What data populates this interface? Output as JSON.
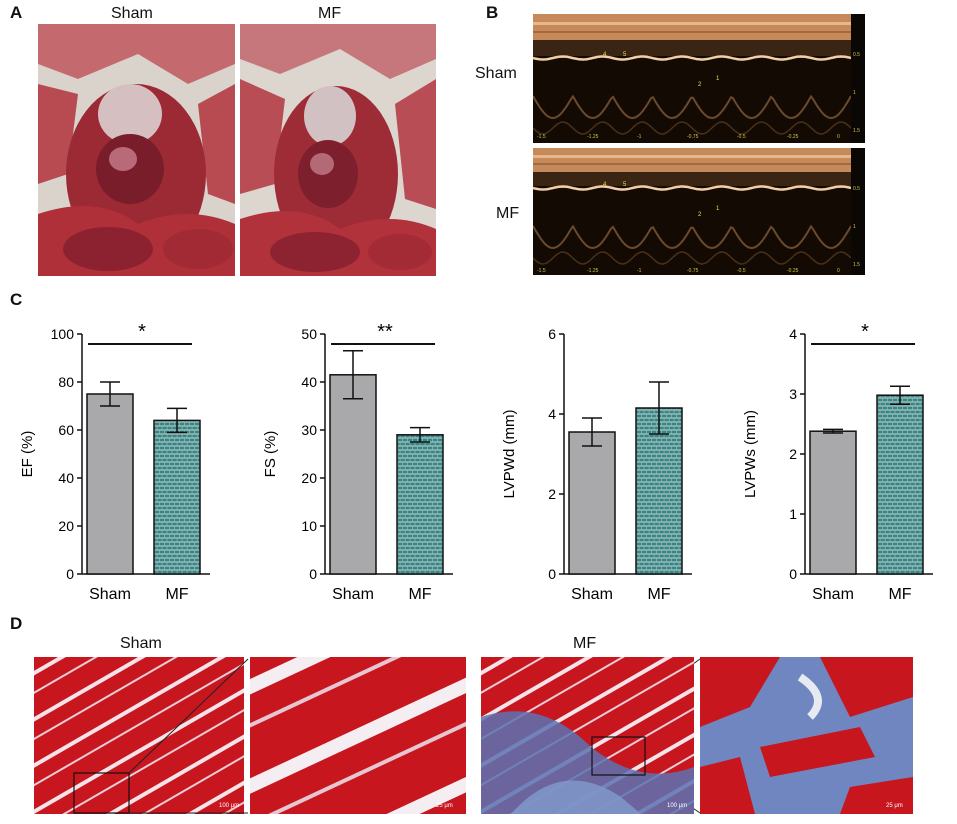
{
  "panels": {
    "A": {
      "letter": "A",
      "labels": [
        "Sham",
        "MF"
      ]
    },
    "B": {
      "letter": "B",
      "labels": [
        "Sham",
        "MF"
      ]
    },
    "C": {
      "letter": "C"
    },
    "D": {
      "letter": "D",
      "labels": [
        "Sham",
        "MF"
      ],
      "scale_bars": [
        "100 μm",
        "25 μm",
        "100 μm",
        "25 μm"
      ]
    }
  },
  "echo_axis": {
    "x_ticks": [
      "-1.5",
      "-1.25",
      "-1",
      "-0.75",
      "-0.5",
      "-0.25",
      "0"
    ],
    "y_ticks_top": [
      "0.5",
      "1",
      "1.5"
    ],
    "y_ticks_bottom": [
      "0.5",
      "1",
      "1.5"
    ],
    "markers_top": [
      "4",
      "5",
      "2",
      "1"
    ],
    "markers_bottom": [
      "4",
      "5",
      "2",
      "1"
    ]
  },
  "colors": {
    "sham_bar": "#a9a9ab",
    "mf_bar": "#2e8a86",
    "mf_brick": "#9ab3b3",
    "tissue_red": "#c8161f",
    "collagen_blue": "#5a72b4"
  },
  "chart_data": [
    {
      "type": "bar",
      "categories": [
        "Sham",
        "MF"
      ],
      "values": [
        75,
        64
      ],
      "errors": [
        5,
        5
      ],
      "ylabel": "EF (%)",
      "ylim": [
        0,
        100
      ],
      "yticks": [
        0,
        20,
        40,
        60,
        80,
        100
      ],
      "significance": "*"
    },
    {
      "type": "bar",
      "categories": [
        "Sham",
        "MF"
      ],
      "values": [
        41.5,
        29
      ],
      "errors": [
        5,
        1.5
      ],
      "ylabel": "FS (%)",
      "ylim": [
        0,
        50
      ],
      "yticks": [
        0,
        10,
        20,
        30,
        40,
        50
      ],
      "significance": "**"
    },
    {
      "type": "bar",
      "categories": [
        "Sham",
        "MF"
      ],
      "values": [
        3.55,
        4.15
      ],
      "errors": [
        0.35,
        0.65
      ],
      "ylabel": "LVPWd (mm)",
      "ylim": [
        0,
        6
      ],
      "yticks": [
        0,
        2,
        4,
        6
      ],
      "significance": ""
    },
    {
      "type": "bar",
      "categories": [
        "Sham",
        "MF"
      ],
      "values": [
        2.38,
        2.98
      ],
      "errors": [
        0.03,
        0.15
      ],
      "ylabel": "LVPWs (mm)",
      "ylim": [
        0,
        4
      ],
      "yticks": [
        0,
        1,
        2,
        3,
        4
      ],
      "significance": "*"
    }
  ]
}
